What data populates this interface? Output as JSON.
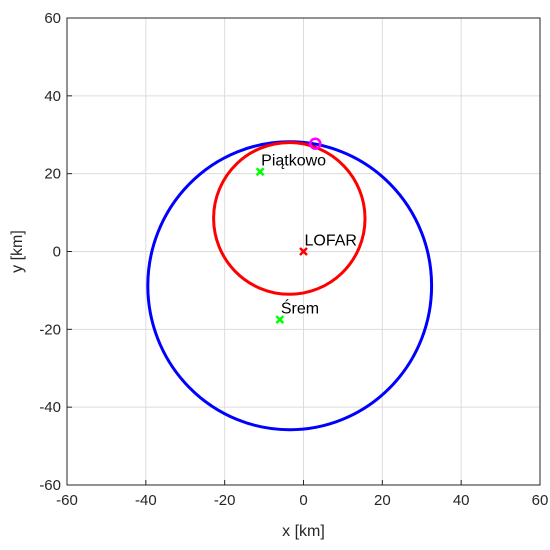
{
  "chart_data": {
    "type": "line",
    "xlabel": "x [km]",
    "ylabel": "y [km]",
    "xlim": [
      -60,
      60
    ],
    "ylim": [
      -60,
      60
    ],
    "xticks": [
      -60,
      -40,
      -20,
      0,
      20,
      40,
      60
    ],
    "yticks": [
      -60,
      -40,
      -20,
      0,
      20,
      40,
      60
    ],
    "grid": true,
    "series": [
      {
        "kind": "ellipse",
        "color": "#0000ff",
        "center": [
          -3.5,
          -8.8
        ],
        "radii": [
          36,
          37
        ],
        "rotation_deg": 0
      },
      {
        "kind": "ellipse",
        "color": "#ff0000",
        "center": [
          -3.6,
          8.5
        ],
        "radii": [
          19.2,
          19.5
        ],
        "rotation_deg": -22
      }
    ],
    "points": [
      {
        "label": "Piątkowo",
        "x": -11,
        "y": 20.5,
        "marker": "x",
        "color": "#00ff00"
      },
      {
        "label": "LOFAR",
        "x": 0,
        "y": 0,
        "marker": "x",
        "color": "#ff0000"
      },
      {
        "label": "Śrem",
        "x": -6,
        "y": -17.5,
        "marker": "x",
        "color": "#00ff00"
      }
    ],
    "highlight": {
      "x": 3,
      "y": 27.7,
      "marker": "o",
      "color": "#ff00ff"
    }
  }
}
